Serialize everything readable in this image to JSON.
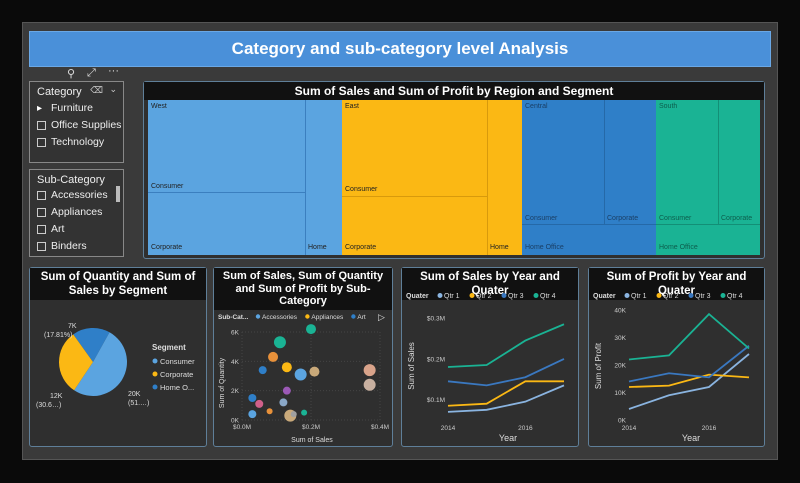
{
  "title": "Category and sub-category level Analysis",
  "category_slicer": {
    "title": "Category",
    "items": [
      "Furniture",
      "Office Supplies",
      "Technology"
    ]
  },
  "subcategory_slicer": {
    "title": "Sub-Category",
    "items": [
      "Accessories",
      "Appliances",
      "Art",
      "Binders"
    ]
  },
  "treemap": {
    "title": "Sum of Sales and Sum of Profit by Region and Segment",
    "regions": [
      {
        "name": "West",
        "color": "#5ba4e0",
        "segments": [
          "Consumer",
          "Corporate",
          "Home"
        ]
      },
      {
        "name": "East",
        "color": "#fbb814",
        "segments": [
          "Consumer",
          "Corporate",
          "Home"
        ]
      },
      {
        "name": "Central",
        "color": "#2f7fc8",
        "segments": [
          "Consumer",
          "Corporate",
          "Home Office"
        ]
      },
      {
        "name": "South",
        "color": "#1ab394",
        "segments": [
          "Consumer",
          "Corporate",
          "Home Office"
        ]
      }
    ]
  },
  "pie": {
    "title": "Sum of Quantity and Sum of Sales by Segment",
    "legend_title": "Segment",
    "labels": {
      "top": "7K",
      "top_pct": "(17.81%)",
      "left": "12K",
      "left_pct": "(30.6…)",
      "right": "20K",
      "right_pct": "(51.…)"
    },
    "chart_data": {
      "type": "pie",
      "categories": [
        "Consumer",
        "Corporate",
        "Home O..."
      ],
      "values": [
        20,
        12,
        7
      ],
      "colors": [
        "#5ba4e0",
        "#fbb814",
        "#2f7fc8"
      ]
    }
  },
  "scatter": {
    "title": "Sum of Sales, Sum of Quantity and Sum of Profit by Sub-Category",
    "legend_title": "Sub-Cat...",
    "legend": [
      {
        "name": "Accessories",
        "color": "#5ba4e0"
      },
      {
        "name": "Appliances",
        "color": "#fbb814"
      },
      {
        "name": "Art",
        "color": "#2f7fc8"
      }
    ],
    "xlabel": "Sum of Sales",
    "ylabel": "Sum of Quantity",
    "xticks": [
      "$0.0M",
      "$0.2M",
      "$0.4M"
    ],
    "yticks": [
      "0K",
      "2K",
      "4K",
      "6K"
    ],
    "chart_data": {
      "type": "scatter",
      "xlim": [
        0,
        0.4
      ],
      "ylim": [
        0,
        6
      ],
      "points": [
        {
          "x": 0.2,
          "y": 6.2,
          "r": 5,
          "color": "#1ab394"
        },
        {
          "x": 0.11,
          "y": 5.3,
          "r": 6,
          "color": "#1ab394"
        },
        {
          "x": 0.09,
          "y": 4.3,
          "r": 5,
          "color": "#e8913a"
        },
        {
          "x": 0.06,
          "y": 3.4,
          "r": 4,
          "color": "#2f7fc8"
        },
        {
          "x": 0.13,
          "y": 3.6,
          "r": 5,
          "color": "#fbb814"
        },
        {
          "x": 0.17,
          "y": 3.1,
          "r": 6,
          "color": "#5ba4e0"
        },
        {
          "x": 0.21,
          "y": 3.3,
          "r": 5,
          "color": "#c9a97a"
        },
        {
          "x": 0.37,
          "y": 3.4,
          "r": 6,
          "color": "#d9a38a"
        },
        {
          "x": 0.37,
          "y": 2.4,
          "r": 6,
          "color": "#c8b0a0"
        },
        {
          "x": 0.13,
          "y": 2.0,
          "r": 4,
          "color": "#9b59b6"
        },
        {
          "x": 0.03,
          "y": 1.5,
          "r": 4,
          "color": "#2f7fc8"
        },
        {
          "x": 0.05,
          "y": 1.1,
          "r": 4,
          "color": "#d0608a"
        },
        {
          "x": 0.08,
          "y": 0.6,
          "r": 3,
          "color": "#e8913a"
        },
        {
          "x": 0.12,
          "y": 1.2,
          "r": 4,
          "color": "#8aa8c8"
        },
        {
          "x": 0.18,
          "y": 0.5,
          "r": 3,
          "color": "#1ab394"
        },
        {
          "x": 0.14,
          "y": 0.3,
          "r": 6,
          "color": "#c9a97a"
        },
        {
          "x": 0.03,
          "y": 0.4,
          "r": 4,
          "color": "#5ba4e0"
        },
        {
          "x": 0.15,
          "y": 0.4,
          "r": 3,
          "color": "#a0a0a0"
        }
      ]
    }
  },
  "sales_line": {
    "title": "Sum of Sales by Year and Quater",
    "legend_title": "Quater",
    "xlabel": "Year",
    "ylabel": "Sum of Sales",
    "xticks": [
      "2014",
      "2016"
    ],
    "yticks": [
      "$0.1M",
      "$0.2M",
      "$0.3M"
    ],
    "chart_data": {
      "type": "line",
      "x": [
        2014,
        2015,
        2016,
        2017
      ],
      "ylim": [
        0.05,
        0.32
      ],
      "series": [
        {
          "name": "Qtr 1",
          "color": "#8ab4e0",
          "values": [
            0.07,
            0.075,
            0.095,
            0.135
          ]
        },
        {
          "name": "Qtr 2",
          "color": "#fbb814",
          "values": [
            0.085,
            0.09,
            0.145,
            0.145
          ]
        },
        {
          "name": "Qtr 3",
          "color": "#3a78c0",
          "values": [
            0.145,
            0.135,
            0.155,
            0.2
          ]
        },
        {
          "name": "Qtr 4",
          "color": "#1ab394",
          "values": [
            0.18,
            0.185,
            0.245,
            0.285
          ]
        }
      ]
    }
  },
  "profit_line": {
    "title": "Sum of Profit by Year and Quater",
    "legend_title": "Quater",
    "xlabel": "Year",
    "ylabel": "Sum of Profit",
    "xticks": [
      "2014",
      "2016"
    ],
    "yticks": [
      "0K",
      "10K",
      "20K",
      "30K",
      "40K"
    ],
    "chart_data": {
      "type": "line",
      "x": [
        2014,
        2015,
        2016,
        2017
      ],
      "ylim": [
        0,
        40
      ],
      "series": [
        {
          "name": "Qtr 1",
          "color": "#8ab4e0",
          "values": [
            4,
            9,
            12,
            24
          ]
        },
        {
          "name": "Qtr 2",
          "color": "#fbb814",
          "values": [
            12,
            12.5,
            16.5,
            15.5
          ]
        },
        {
          "name": "Qtr 3",
          "color": "#3a78c0",
          "values": [
            14,
            17,
            15.5,
            27
          ]
        },
        {
          "name": "Qtr 4",
          "color": "#1ab394",
          "values": [
            22,
            23.5,
            38.5,
            26
          ]
        }
      ]
    }
  }
}
